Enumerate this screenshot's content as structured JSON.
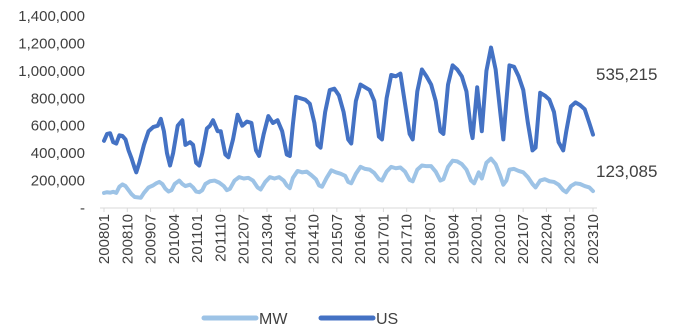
{
  "chart_data": {
    "type": "line",
    "title": "",
    "xlabel": "",
    "ylabel": "",
    "ylim": [
      0,
      1400000
    ],
    "y_ticks": [
      "-",
      "200,000",
      "400,000",
      "600,000",
      "800,000",
      "1,000,000",
      "1,200,000",
      "1,400,000"
    ],
    "x_tick_labels": [
      "200801",
      "200810",
      "200907",
      "201004",
      "201101",
      "201110",
      "201207",
      "201304",
      "201401",
      "201410",
      "201507",
      "201604",
      "201701",
      "201710",
      "201807",
      "201904",
      "202001",
      "202010",
      "202107",
      "202204",
      "202301",
      "202310"
    ],
    "legend": {
      "placement": "bottom"
    },
    "grid": false,
    "x_start": "2008-01",
    "x_end": "2023-12",
    "series": [
      {
        "name": "MW",
        "color": "#9DC3E6",
        "end_label": "123,085",
        "values": [
          [
            2008.0,
            110000
          ],
          [
            2008.1,
            115000
          ],
          [
            2008.2,
            112000
          ],
          [
            2008.3,
            118000
          ],
          [
            2008.4,
            110000
          ],
          [
            2008.5,
            155000
          ],
          [
            2008.6,
            172000
          ],
          [
            2008.7,
            160000
          ],
          [
            2008.8,
            130000
          ],
          [
            2008.9,
            100000
          ],
          [
            2009.0,
            80000
          ],
          [
            2009.2,
            75000
          ],
          [
            2009.3,
            110000
          ],
          [
            2009.45,
            150000
          ],
          [
            2009.6,
            165000
          ],
          [
            2009.7,
            180000
          ],
          [
            2009.8,
            190000
          ],
          [
            2009.9,
            175000
          ],
          [
            2010.0,
            140000
          ],
          [
            2010.1,
            120000
          ],
          [
            2010.2,
            130000
          ],
          [
            2010.3,
            175000
          ],
          [
            2010.45,
            200000
          ],
          [
            2010.55,
            175000
          ],
          [
            2010.65,
            160000
          ],
          [
            2010.8,
            170000
          ],
          [
            2010.9,
            150000
          ],
          [
            2011.0,
            120000
          ],
          [
            2011.1,
            115000
          ],
          [
            2011.2,
            130000
          ],
          [
            2011.3,
            175000
          ],
          [
            2011.45,
            195000
          ],
          [
            2011.6,
            200000
          ],
          [
            2011.75,
            185000
          ],
          [
            2011.9,
            160000
          ],
          [
            2012.0,
            130000
          ],
          [
            2012.1,
            140000
          ],
          [
            2012.25,
            200000
          ],
          [
            2012.4,
            225000
          ],
          [
            2012.55,
            215000
          ],
          [
            2012.7,
            220000
          ],
          [
            2012.85,
            200000
          ],
          [
            2013.0,
            150000
          ],
          [
            2013.1,
            135000
          ],
          [
            2013.25,
            190000
          ],
          [
            2013.4,
            225000
          ],
          [
            2013.55,
            215000
          ],
          [
            2013.7,
            225000
          ],
          [
            2013.85,
            200000
          ],
          [
            2013.95,
            165000
          ],
          [
            2014.05,
            145000
          ],
          [
            2014.15,
            220000
          ],
          [
            2014.3,
            270000
          ],
          [
            2014.45,
            260000
          ],
          [
            2014.6,
            265000
          ],
          [
            2014.75,
            240000
          ],
          [
            2014.9,
            210000
          ],
          [
            2015.0,
            165000
          ],
          [
            2015.1,
            155000
          ],
          [
            2015.25,
            220000
          ],
          [
            2015.4,
            275000
          ],
          [
            2015.55,
            260000
          ],
          [
            2015.7,
            250000
          ],
          [
            2015.85,
            235000
          ],
          [
            2015.95,
            190000
          ],
          [
            2016.05,
            180000
          ],
          [
            2016.2,
            250000
          ],
          [
            2016.35,
            300000
          ],
          [
            2016.5,
            285000
          ],
          [
            2016.65,
            280000
          ],
          [
            2016.8,
            255000
          ],
          [
            2016.95,
            210000
          ],
          [
            2017.05,
            200000
          ],
          [
            2017.2,
            265000
          ],
          [
            2017.35,
            300000
          ],
          [
            2017.5,
            290000
          ],
          [
            2017.65,
            295000
          ],
          [
            2017.8,
            265000
          ],
          [
            2017.95,
            205000
          ],
          [
            2018.05,
            195000
          ],
          [
            2018.2,
            280000
          ],
          [
            2018.35,
            310000
          ],
          [
            2018.5,
            305000
          ],
          [
            2018.65,
            305000
          ],
          [
            2018.8,
            265000
          ],
          [
            2018.95,
            200000
          ],
          [
            2019.05,
            210000
          ],
          [
            2019.2,
            300000
          ],
          [
            2019.35,
            345000
          ],
          [
            2019.5,
            340000
          ],
          [
            2019.65,
            320000
          ],
          [
            2019.8,
            280000
          ],
          [
            2019.95,
            200000
          ],
          [
            2020.05,
            180000
          ],
          [
            2020.2,
            260000
          ],
          [
            2020.3,
            215000
          ],
          [
            2020.45,
            330000
          ],
          [
            2020.6,
            360000
          ],
          [
            2020.75,
            320000
          ],
          [
            2020.9,
            235000
          ],
          [
            2021.0,
            170000
          ],
          [
            2021.1,
            200000
          ],
          [
            2021.2,
            280000
          ],
          [
            2021.35,
            285000
          ],
          [
            2021.5,
            270000
          ],
          [
            2021.65,
            260000
          ],
          [
            2021.8,
            225000
          ],
          [
            2021.95,
            175000
          ],
          [
            2022.05,
            150000
          ],
          [
            2022.2,
            200000
          ],
          [
            2022.35,
            210000
          ],
          [
            2022.5,
            195000
          ],
          [
            2022.65,
            190000
          ],
          [
            2022.8,
            170000
          ],
          [
            2022.95,
            130000
          ],
          [
            2023.05,
            115000
          ],
          [
            2023.2,
            160000
          ],
          [
            2023.35,
            180000
          ],
          [
            2023.5,
            175000
          ],
          [
            2023.65,
            160000
          ],
          [
            2023.8,
            150000
          ],
          [
            2023.92,
            123085
          ]
        ]
      },
      {
        "name": "US",
        "color": "#4472C4",
        "end_label": "535,215",
        "values": [
          [
            2008.0,
            490000
          ],
          [
            2008.1,
            540000
          ],
          [
            2008.2,
            545000
          ],
          [
            2008.3,
            480000
          ],
          [
            2008.4,
            470000
          ],
          [
            2008.5,
            530000
          ],
          [
            2008.6,
            525000
          ],
          [
            2008.7,
            500000
          ],
          [
            2008.8,
            420000
          ],
          [
            2008.9,
            360000
          ],
          [
            2009.0,
            290000
          ],
          [
            2009.05,
            260000
          ],
          [
            2009.15,
            330000
          ],
          [
            2009.3,
            460000
          ],
          [
            2009.45,
            560000
          ],
          [
            2009.6,
            590000
          ],
          [
            2009.75,
            600000
          ],
          [
            2009.85,
            650000
          ],
          [
            2009.95,
            560000
          ],
          [
            2010.05,
            400000
          ],
          [
            2010.15,
            310000
          ],
          [
            2010.25,
            400000
          ],
          [
            2010.4,
            600000
          ],
          [
            2010.55,
            640000
          ],
          [
            2010.65,
            460000
          ],
          [
            2010.8,
            480000
          ],
          [
            2010.9,
            460000
          ],
          [
            2011.0,
            330000
          ],
          [
            2011.1,
            310000
          ],
          [
            2011.2,
            400000
          ],
          [
            2011.35,
            580000
          ],
          [
            2011.45,
            600000
          ],
          [
            2011.55,
            640000
          ],
          [
            2011.7,
            560000
          ],
          [
            2011.8,
            560000
          ],
          [
            2011.95,
            390000
          ],
          [
            2012.05,
            370000
          ],
          [
            2012.2,
            500000
          ],
          [
            2012.35,
            680000
          ],
          [
            2012.5,
            600000
          ],
          [
            2012.65,
            630000
          ],
          [
            2012.8,
            620000
          ],
          [
            2012.95,
            420000
          ],
          [
            2013.05,
            380000
          ],
          [
            2013.2,
            540000
          ],
          [
            2013.35,
            670000
          ],
          [
            2013.5,
            620000
          ],
          [
            2013.65,
            640000
          ],
          [
            2013.8,
            560000
          ],
          [
            2013.95,
            390000
          ],
          [
            2014.05,
            380000
          ],
          [
            2014.15,
            610000
          ],
          [
            2014.25,
            810000
          ],
          [
            2014.4,
            800000
          ],
          [
            2014.55,
            790000
          ],
          [
            2014.7,
            760000
          ],
          [
            2014.85,
            620000
          ],
          [
            2014.95,
            460000
          ],
          [
            2015.05,
            440000
          ],
          [
            2015.2,
            700000
          ],
          [
            2015.35,
            860000
          ],
          [
            2015.5,
            870000
          ],
          [
            2015.65,
            820000
          ],
          [
            2015.8,
            700000
          ],
          [
            2015.95,
            500000
          ],
          [
            2016.05,
            470000
          ],
          [
            2016.2,
            780000
          ],
          [
            2016.35,
            900000
          ],
          [
            2016.5,
            880000
          ],
          [
            2016.65,
            860000
          ],
          [
            2016.8,
            780000
          ],
          [
            2016.95,
            520000
          ],
          [
            2017.05,
            500000
          ],
          [
            2017.2,
            800000
          ],
          [
            2017.35,
            970000
          ],
          [
            2017.5,
            960000
          ],
          [
            2017.65,
            980000
          ],
          [
            2017.8,
            760000
          ],
          [
            2017.95,
            540000
          ],
          [
            2018.05,
            500000
          ],
          [
            2018.2,
            850000
          ],
          [
            2018.35,
            1010000
          ],
          [
            2018.5,
            960000
          ],
          [
            2018.65,
            900000
          ],
          [
            2018.8,
            780000
          ],
          [
            2018.95,
            560000
          ],
          [
            2019.05,
            540000
          ],
          [
            2019.2,
            900000
          ],
          [
            2019.35,
            1040000
          ],
          [
            2019.5,
            1010000
          ],
          [
            2019.65,
            960000
          ],
          [
            2019.8,
            850000
          ],
          [
            2019.95,
            560000
          ],
          [
            2020.0,
            510000
          ],
          [
            2020.15,
            880000
          ],
          [
            2020.3,
            560000
          ],
          [
            2020.45,
            1000000
          ],
          [
            2020.6,
            1170000
          ],
          [
            2020.75,
            1010000
          ],
          [
            2020.9,
            700000
          ],
          [
            2021.0,
            500000
          ],
          [
            2021.1,
            780000
          ],
          [
            2021.2,
            1040000
          ],
          [
            2021.35,
            1030000
          ],
          [
            2021.5,
            960000
          ],
          [
            2021.65,
            860000
          ],
          [
            2021.8,
            620000
          ],
          [
            2021.95,
            420000
          ],
          [
            2022.05,
            440000
          ],
          [
            2022.2,
            840000
          ],
          [
            2022.35,
            820000
          ],
          [
            2022.5,
            790000
          ],
          [
            2022.65,
            700000
          ],
          [
            2022.8,
            480000
          ],
          [
            2022.95,
            420000
          ],
          [
            2023.05,
            560000
          ],
          [
            2023.2,
            740000
          ],
          [
            2023.35,
            770000
          ],
          [
            2023.5,
            750000
          ],
          [
            2023.65,
            720000
          ],
          [
            2023.8,
            620000
          ],
          [
            2023.92,
            535215
          ]
        ]
      }
    ]
  }
}
